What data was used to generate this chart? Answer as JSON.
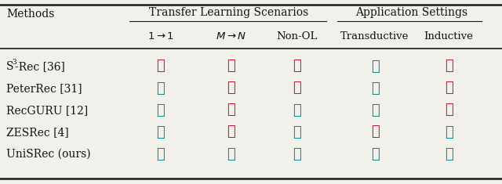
{
  "methods": [
    "S$^3$-Rec [36]",
    "PeterRec [31]",
    "RecGURU [12]",
    "ZESRec [4]",
    "UniSRec (ours)"
  ],
  "col_headers_sub": [
    "$1 \\rightarrow 1$",
    "$M \\rightarrow N$",
    "Non-OL",
    "Transductive",
    "Inductive"
  ],
  "group_headers": [
    "Transfer Learning Scenarios",
    "Application Settings"
  ],
  "checks": [
    [
      false,
      false,
      false,
      true,
      false
    ],
    [
      true,
      false,
      false,
      true,
      false
    ],
    [
      true,
      false,
      true,
      true,
      false
    ],
    [
      true,
      false,
      true,
      false,
      true
    ],
    [
      true,
      true,
      true,
      true,
      true
    ]
  ],
  "check_color": "#008B8B",
  "cross_color": "#CC1133",
  "bg_color": "#F2F0EA",
  "line_color": "#1a1a1a",
  "text_color": "#111111",
  "figsize": [
    6.4,
    2.35
  ],
  "dpi": 100
}
